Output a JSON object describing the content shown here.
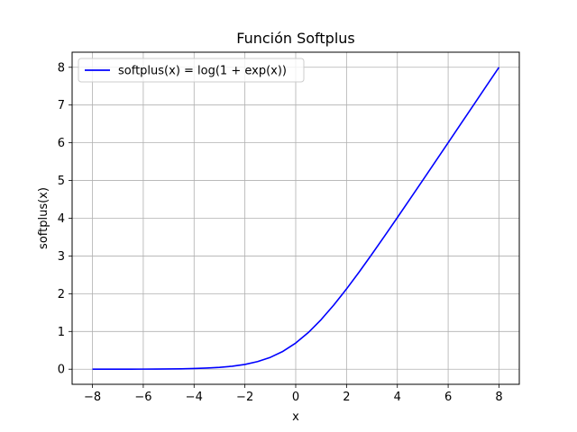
{
  "chart_data": {
    "type": "line",
    "title": "Función Softplus",
    "xlabel": "x",
    "ylabel": "softplus(x)",
    "xlim": [
      -8.8,
      8.8
    ],
    "ylim": [
      -0.4,
      8.4
    ],
    "x_ticks": [
      -8,
      -6,
      -4,
      -2,
      0,
      2,
      4,
      6,
      8
    ],
    "x_tick_labels": [
      "−8",
      "−6",
      "−4",
      "−2",
      "0",
      "2",
      "4",
      "6",
      "8"
    ],
    "y_ticks": [
      0,
      1,
      2,
      3,
      4,
      5,
      6,
      7,
      8
    ],
    "y_tick_labels": [
      "0",
      "1",
      "2",
      "3",
      "4",
      "5",
      "6",
      "7",
      "8"
    ],
    "grid": true,
    "legend_position": "top-left",
    "series": [
      {
        "name": "softplus(x) = log(1 + exp(x))",
        "color": "#0000ff",
        "x": [
          -8,
          -7.5,
          -7,
          -6.5,
          -6,
          -5.5,
          -5,
          -4.5,
          -4,
          -3.5,
          -3,
          -2.5,
          -2,
          -1.5,
          -1,
          -0.5,
          0,
          0.5,
          1,
          1.5,
          2,
          2.5,
          3,
          3.5,
          4,
          4.5,
          5,
          5.5,
          6,
          6.5,
          7,
          7.5,
          8
        ],
        "y": [
          0.0003,
          0.0006,
          0.0009,
          0.0015,
          0.0025,
          0.0041,
          0.0067,
          0.011,
          0.0181,
          0.0298,
          0.0486,
          0.0789,
          0.1269,
          0.2014,
          0.3133,
          0.4741,
          0.6931,
          0.9741,
          1.3133,
          1.7014,
          2.1269,
          2.5789,
          3.0486,
          3.5298,
          4.0181,
          4.511,
          5.0067,
          5.5041,
          6.0025,
          6.5015,
          7.0009,
          7.5006,
          8.0003
        ]
      }
    ]
  }
}
